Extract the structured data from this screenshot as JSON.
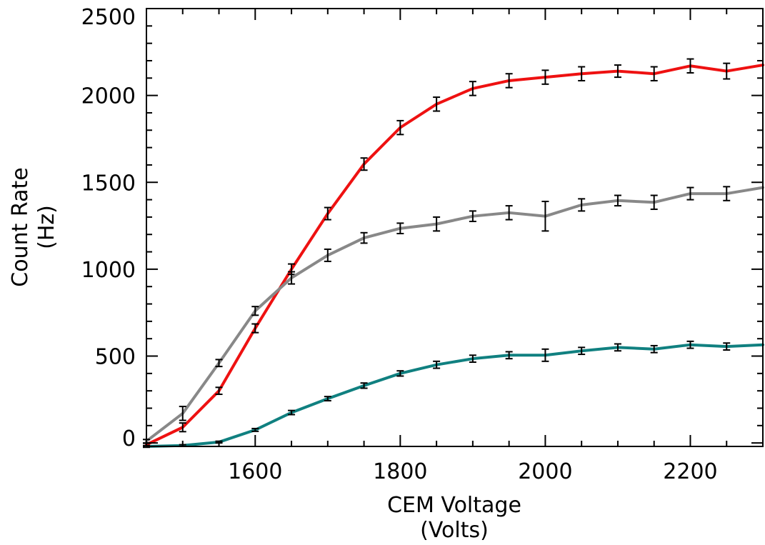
{
  "chart_data": {
    "type": "line",
    "xlabel": "CEM Voltage",
    "xlabel_unit": "(Volts)",
    "ylabel": "Count Rate",
    "ylabel_unit": "(Hz)",
    "xlim": [
      1450,
      2300
    ],
    "ylim": [
      -20,
      2500
    ],
    "x_ticks": [
      1600,
      1800,
      2000,
      2200
    ],
    "y_ticks": [
      0,
      500,
      1000,
      1500,
      2000,
      2500
    ],
    "grid": false,
    "x": [
      1450,
      1500,
      1550,
      1600,
      1650,
      1700,
      1750,
      1800,
      1850,
      1900,
      1950,
      2000,
      2050,
      2100,
      2150,
      2200,
      2250,
      2300
    ],
    "series": [
      {
        "color": "#ee1111",
        "values": [
          -10,
          90,
          300,
          660,
          1000,
          1320,
          1605,
          1815,
          1950,
          2040,
          2085,
          2105,
          2125,
          2140,
          2125,
          2170,
          2140,
          2175
        ],
        "errors": [
          8,
          25,
          20,
          25,
          30,
          35,
          35,
          40,
          40,
          40,
          40,
          40,
          40,
          35,
          40,
          40,
          45,
          0
        ]
      },
      {
        "color": "#888888",
        "values": [
          10,
          170,
          460,
          760,
          950,
          1080,
          1180,
          1235,
          1260,
          1305,
          1325,
          1305,
          1370,
          1395,
          1385,
          1435,
          1435,
          1470
        ],
        "errors": [
          10,
          40,
          20,
          25,
          35,
          35,
          30,
          30,
          40,
          30,
          40,
          85,
          35,
          30,
          40,
          35,
          40,
          0
        ]
      },
      {
        "color": "#108080",
        "values": [
          -20,
          -15,
          5,
          75,
          175,
          255,
          330,
          400,
          450,
          485,
          505,
          505,
          530,
          550,
          540,
          565,
          555,
          565
        ],
        "errors": [
          5,
          5,
          5,
          8,
          12,
          12,
          15,
          15,
          20,
          20,
          20,
          35,
          20,
          20,
          20,
          20,
          20,
          0
        ]
      }
    ]
  }
}
